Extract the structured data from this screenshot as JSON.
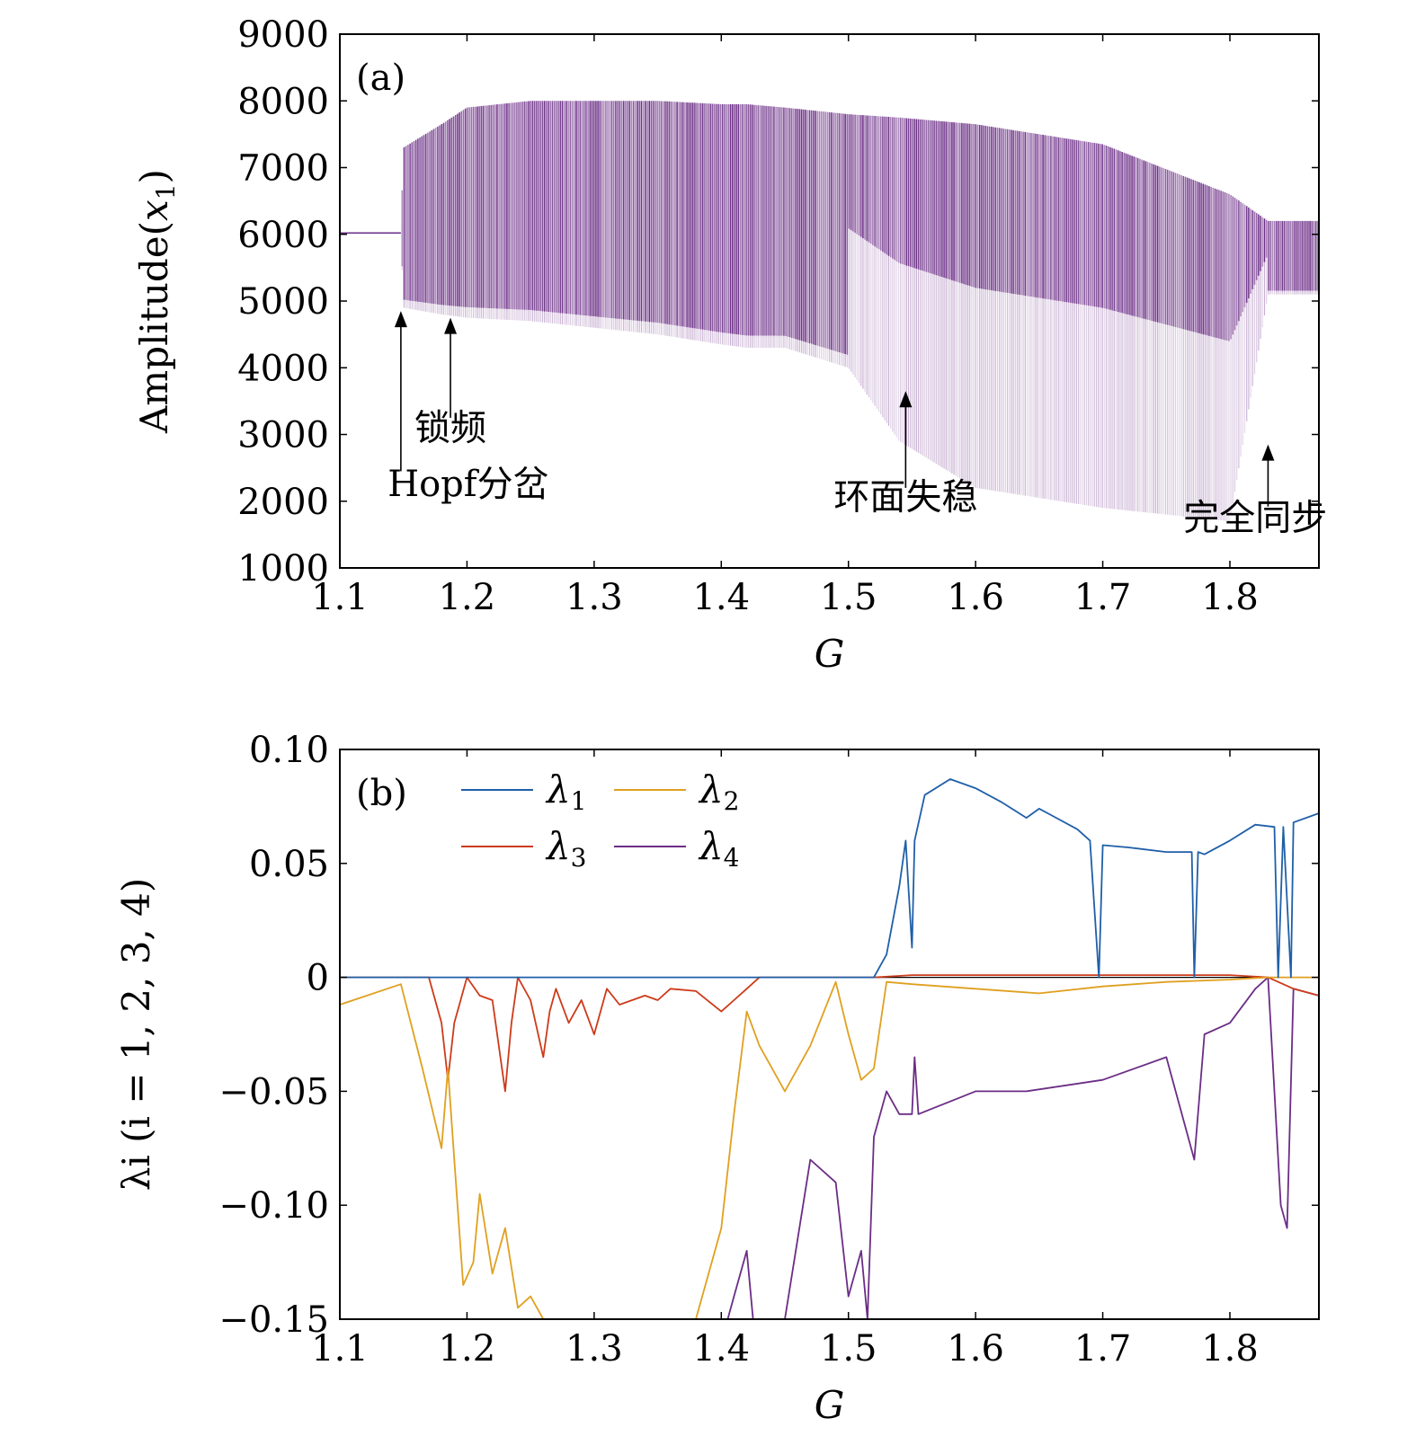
{
  "chart_data": [
    {
      "type": "scatter",
      "panel_label": "(a)",
      "xlabel": "G",
      "ylabel": "Amplitude(x1)",
      "ylabel_base": "Amplitude(",
      "ylabel_var": "x",
      "ylabel_sub": "1",
      "ylabel_close": ")",
      "xlim": [
        1.1,
        1.87
      ],
      "ylim": [
        1000,
        9000
      ],
      "x_ticks": [
        "1.1",
        "1.2",
        "1.3",
        "1.4",
        "1.5",
        "1.6",
        "1.7",
        "1.8"
      ],
      "y_ticks": [
        "1000",
        "2000",
        "3000",
        "4000",
        "5000",
        "6000",
        "7000",
        "8000",
        "9000"
      ],
      "series_color": "#6b2d86",
      "envelope": {
        "x": [
          1.1,
          1.148,
          1.15,
          1.18,
          1.2,
          1.25,
          1.3,
          1.35,
          1.4,
          1.42,
          1.45,
          1.5,
          1.54,
          1.6,
          1.7,
          1.8,
          1.83,
          1.87
        ],
        "upper": [
          6020,
          6020,
          7300,
          7650,
          7900,
          8000,
          8000,
          8000,
          7950,
          7950,
          7900,
          7800,
          7750,
          7650,
          7350,
          6600,
          6200,
          6200
        ],
        "lower": [
          6020,
          6020,
          4900,
          4800,
          4750,
          4700,
          4600,
          4500,
          4350,
          4300,
          4300,
          4000,
          2900,
          2200,
          1900,
          1700,
          5100,
          5100
        ]
      },
      "annotations": [
        {
          "text": "Hopf分岔",
          "x": 1.148,
          "arrow_tip_y": 4850
        },
        {
          "text": "锁频",
          "x": 1.187,
          "arrow_tip_y": 4750
        },
        {
          "text": "环面失稳",
          "x": 1.545,
          "arrow_tip_y": 3650
        },
        {
          "text": "完全同步",
          "x": 1.83,
          "arrow_tip_y": 2850
        }
      ]
    },
    {
      "type": "line",
      "panel_label": "(b)",
      "xlabel": "G",
      "ylabel": "λi (i = 1, 2, 3, 4)",
      "xlim": [
        1.1,
        1.87
      ],
      "ylim": [
        -0.15,
        0.1
      ],
      "x_ticks": [
        "1.1",
        "1.2",
        "1.3",
        "1.4",
        "1.5",
        "1.6",
        "1.7",
        "1.8"
      ],
      "y_ticks": [
        "0.10",
        "0.05",
        "0",
        "−0.05",
        "−0.10",
        "−0.15"
      ],
      "legend_position": "top-left",
      "series": [
        {
          "name": "λ1",
          "sym": "λ",
          "sub": "1",
          "color": "#1f5fa8",
          "x": [
            1.1,
            1.52,
            1.53,
            1.54,
            1.545,
            1.55,
            1.552,
            1.56,
            1.58,
            1.6,
            1.62,
            1.64,
            1.65,
            1.66,
            1.68,
            1.69,
            1.697,
            1.7,
            1.72,
            1.75,
            1.77,
            1.772,
            1.775,
            1.78,
            1.8,
            1.82,
            1.835,
            1.838,
            1.842,
            1.848,
            1.85,
            1.87
          ],
          "y": [
            0,
            0,
            0.01,
            0.04,
            0.06,
            0.013,
            0.06,
            0.08,
            0.087,
            0.083,
            0.077,
            0.07,
            0.074,
            0.071,
            0.065,
            0.06,
            0,
            0.058,
            0.057,
            0.055,
            0.055,
            0,
            0.055,
            0.054,
            0.06,
            0.067,
            0.066,
            0,
            0.066,
            0,
            0.068,
            0.072
          ]
        },
        {
          "name": "λ2",
          "sym": "λ",
          "sub": "2",
          "color": "#e0a020",
          "x": [
            1.1,
            1.148,
            1.165,
            1.18,
            1.185,
            1.19,
            1.197,
            1.205,
            1.21,
            1.22,
            1.23,
            1.24,
            1.25,
            1.26,
            1.3,
            1.35,
            1.38,
            1.4,
            1.41,
            1.42,
            1.43,
            1.45,
            1.47,
            1.49,
            1.5,
            1.51,
            1.52,
            1.53,
            1.55,
            1.6,
            1.65,
            1.7,
            1.75,
            1.8,
            1.83,
            1.87
          ],
          "y": [
            -0.012,
            -0.003,
            -0.04,
            -0.075,
            -0.04,
            -0.08,
            -0.135,
            -0.125,
            -0.095,
            -0.13,
            -0.11,
            -0.145,
            -0.14,
            -0.15,
            -0.16,
            -0.16,
            -0.15,
            -0.11,
            -0.06,
            -0.015,
            -0.03,
            -0.05,
            -0.03,
            -0.002,
            -0.025,
            -0.045,
            -0.04,
            -0.002,
            -0.003,
            -0.005,
            -0.007,
            -0.004,
            -0.002,
            -0.001,
            0,
            0
          ]
        },
        {
          "name": "λ3",
          "sym": "λ",
          "sub": "3",
          "color": "#cc3b1a",
          "x": [
            1.1,
            1.17,
            1.18,
            1.185,
            1.19,
            1.2,
            1.21,
            1.22,
            1.225,
            1.23,
            1.235,
            1.24,
            1.25,
            1.26,
            1.265,
            1.27,
            1.28,
            1.29,
            1.3,
            1.31,
            1.32,
            1.34,
            1.35,
            1.36,
            1.38,
            1.4,
            1.41,
            1.42,
            1.43,
            1.52,
            1.55,
            1.6,
            1.7,
            1.8,
            1.83,
            1.85,
            1.87
          ],
          "y": [
            0,
            0,
            -0.02,
            -0.045,
            -0.02,
            0,
            -0.008,
            -0.01,
            -0.03,
            -0.05,
            -0.02,
            0,
            -0.01,
            -0.035,
            -0.015,
            -0.005,
            -0.02,
            -0.01,
            -0.025,
            -0.005,
            -0.012,
            -0.008,
            -0.01,
            -0.005,
            -0.006,
            -0.015,
            -0.01,
            -0.005,
            0,
            0,
            0.001,
            0.001,
            0.001,
            0.001,
            0,
            -0.005,
            -0.008
          ]
        },
        {
          "name": "λ4",
          "sym": "λ",
          "sub": "4",
          "color": "#6b2d86",
          "x": [
            1.405,
            1.41,
            1.42,
            1.425,
            1.45,
            1.47,
            1.49,
            1.5,
            1.51,
            1.515,
            1.52,
            1.53,
            1.54,
            1.55,
            1.552,
            1.555,
            1.6,
            1.64,
            1.7,
            1.75,
            1.772,
            1.78,
            1.8,
            1.82,
            1.83,
            1.84,
            1.845,
            1.85,
            1.87
          ],
          "y": [
            -0.15,
            -0.14,
            -0.12,
            -0.15,
            -0.15,
            -0.08,
            -0.09,
            -0.14,
            -0.12,
            -0.15,
            -0.07,
            -0.05,
            -0.06,
            -0.06,
            -0.035,
            -0.06,
            -0.05,
            -0.05,
            -0.045,
            -0.035,
            -0.08,
            -0.025,
            -0.02,
            -0.005,
            0,
            -0.1,
            -0.11,
            -0.005,
            -0.008
          ]
        }
      ],
      "zero_line": true
    }
  ]
}
